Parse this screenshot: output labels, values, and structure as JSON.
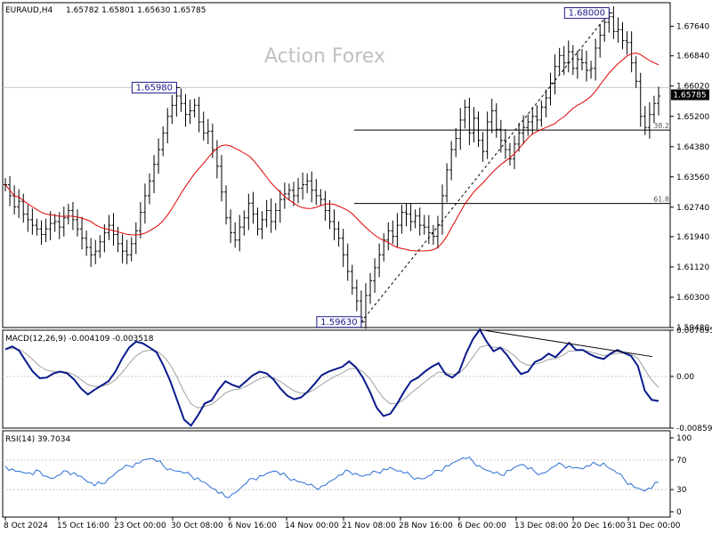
{
  "header": {
    "symbol": "EURAUD,H4",
    "ohlc": "1.65782 1.65801 1.65630 1.65785"
  },
  "watermark": "Action Forex",
  "colors": {
    "price": "#000000",
    "ma": "#e00000",
    "macd": "#0b1a8c",
    "signal": "#a0a0a0",
    "rsi": "#2a6fd6",
    "level_box": "#1a1a8c",
    "grid": "#c8c8c8"
  },
  "chart_data": [
    {
      "pane": "price",
      "type": "line",
      "y_ticks": [
        "1.67640",
        "1.66840",
        "1.66020",
        "1.65200",
        "1.64380",
        "1.63560",
        "1.62740",
        "1.61940",
        "1.61120",
        "1.60300",
        "1.59480"
      ],
      "ylim": [
        1.5948,
        1.6828
      ],
      "current_price_label": "1.65785",
      "current_price": 1.65785,
      "annotations": [
        {
          "label": "1.68000",
          "value": 1.68
        },
        {
          "label": "1.65980",
          "value": 1.6598
        },
        {
          "label": "1.59630",
          "value": 1.5963
        }
      ],
      "fib_levels": [
        {
          "label": "38.2",
          "value": 1.6483
        },
        {
          "label": "61.8",
          "value": 1.6284
        }
      ],
      "close": [
        1.6335,
        1.6305,
        1.6275,
        1.629,
        1.6255,
        1.624,
        1.6225,
        1.6215,
        1.62,
        1.6215,
        1.623,
        1.6235,
        1.622,
        1.6245,
        1.6265,
        1.624,
        1.6215,
        1.619,
        1.6165,
        1.6145,
        1.6155,
        1.618,
        1.6205,
        1.6225,
        1.62,
        1.6175,
        1.6155,
        1.6145,
        1.6175,
        1.621,
        1.626,
        1.6305,
        1.6345,
        1.639,
        1.643,
        1.6475,
        1.652,
        1.655,
        1.6575,
        1.6555,
        1.6525,
        1.6535,
        1.655,
        1.6505,
        1.6475,
        1.648,
        1.643,
        1.6385,
        1.6315,
        1.6245,
        1.6205,
        1.6185,
        1.622,
        1.6245,
        1.6285,
        1.6255,
        1.6215,
        1.624,
        1.6265,
        1.6235,
        1.6265,
        1.6295,
        1.631,
        1.632,
        1.6305,
        1.6325,
        1.6335,
        1.6345,
        1.632,
        1.6305,
        1.6295,
        1.6265,
        1.6235,
        1.6215,
        1.619,
        1.6145,
        1.61,
        1.6055,
        1.602,
        1.5975,
        1.6035,
        1.6075,
        1.611,
        1.6145,
        1.6185,
        1.621,
        1.6195,
        1.6225,
        1.626,
        1.6255,
        1.6235,
        1.625,
        1.6225,
        1.622,
        1.6205,
        1.6195,
        1.6225,
        1.6305,
        1.6375,
        1.643,
        1.646,
        1.651,
        1.6545,
        1.6475,
        1.6515,
        1.6455,
        1.6425,
        1.6505,
        1.6535,
        1.6485,
        1.6455,
        1.643,
        1.6405,
        1.6445,
        1.6475,
        1.649,
        1.6505,
        1.652,
        1.651,
        1.6545,
        1.657,
        1.661,
        1.6655,
        1.6685,
        1.6665,
        1.6695,
        1.665,
        1.6675,
        1.6665,
        1.6645,
        1.665,
        1.6705,
        1.674,
        1.6775,
        1.679,
        1.675,
        1.6755,
        1.6725,
        1.672,
        1.6665,
        1.6615,
        1.652,
        1.649,
        1.6525,
        1.6555,
        1.6575
      ]
    },
    {
      "pane": "macd",
      "type": "line",
      "title": "MACD(12,26,9) -0.004109 -0.003518",
      "y_ticks": [
        "0.007695",
        "0.00",
        "-0.008599"
      ],
      "ylim": [
        -0.0086,
        0.0077
      ],
      "macd": [
        0.0045,
        0.005,
        0.0043,
        0.0025,
        0.0008,
        -0.0003,
        -0.0002,
        0.0005,
        0.0008,
        0.0005,
        -0.0005,
        -0.002,
        -0.003,
        -0.0022,
        -0.0015,
        -0.0008,
        0.0008,
        0.003,
        0.0048,
        0.0058,
        0.0055,
        0.0048,
        0.004,
        0.0018,
        -0.0008,
        -0.004,
        -0.0072,
        -0.0082,
        -0.0065,
        -0.0045,
        -0.004,
        -0.0022,
        -0.0008,
        -0.0014,
        -0.0018,
        -0.0008,
        0.0002,
        0.0008,
        0.0005,
        -0.0005,
        -0.002,
        -0.0032,
        -0.0038,
        -0.0035,
        -0.0025,
        -0.0012,
        0.0002,
        0.0008,
        0.0012,
        0.0016,
        0.0025,
        0.0015,
        -0.0002,
        -0.0025,
        -0.0052,
        -0.0066,
        -0.0062,
        -0.0045,
        -0.0025,
        -0.0008,
        -0.0002,
        0.0008,
        0.0016,
        0.0022,
        0.0004,
        -0.0002,
        0.0008,
        0.0038,
        0.0062,
        0.0078,
        0.0058,
        0.0042,
        0.0048,
        0.0035,
        0.0018,
        0.0004,
        0.0008,
        0.0024,
        0.0029,
        0.0038,
        0.0032,
        0.0044,
        0.0056,
        0.0044,
        0.0044,
        0.0037,
        0.0032,
        0.0029,
        0.0038,
        0.0044,
        0.0039,
        0.0034,
        0.0017,
        -0.0024,
        -0.0039,
        -0.0041
      ]
    },
    {
      "pane": "rsi",
      "type": "line",
      "title": "RSI(14) 39.7034",
      "y_ticks": [
        "100",
        "70",
        "30",
        "0"
      ],
      "ylim": [
        0,
        100
      ],
      "levels": [
        70,
        30
      ],
      "rsi": [
        62,
        58,
        55,
        52,
        50,
        55,
        48,
        45,
        50,
        55,
        53,
        48,
        40,
        35,
        38,
        45,
        52,
        58,
        62,
        66,
        70,
        72,
        68,
        62,
        58,
        55,
        52,
        49,
        46,
        40,
        32,
        25,
        20,
        24,
        30,
        38,
        45,
        49,
        52,
        55,
        50,
        47,
        44,
        40,
        36,
        33,
        35,
        40,
        45,
        50,
        55,
        52,
        48,
        50,
        54,
        58,
        60,
        55,
        52,
        48,
        46,
        45,
        50,
        56,
        62,
        66,
        70,
        72,
        68,
        62,
        56,
        52,
        50,
        56,
        60,
        64,
        58,
        54,
        52,
        56,
        62,
        64,
        62,
        60,
        58,
        62,
        64,
        66,
        58,
        52,
        44,
        38,
        32,
        28,
        32,
        39.7
      ]
    }
  ],
  "x_ticks": [
    "8 Oct 2024",
    "15 Oct 16:00",
    "23 Oct 00:00",
    "30 Oct 08:00",
    "6 Nov 16:00",
    "14 Nov 00:00",
    "21 Nov 08:00",
    "28 Nov 16:00",
    "6 Dec 00:00",
    "13 Dec 08:00",
    "20 Dec 16:00",
    "31 Dec 00:00"
  ]
}
